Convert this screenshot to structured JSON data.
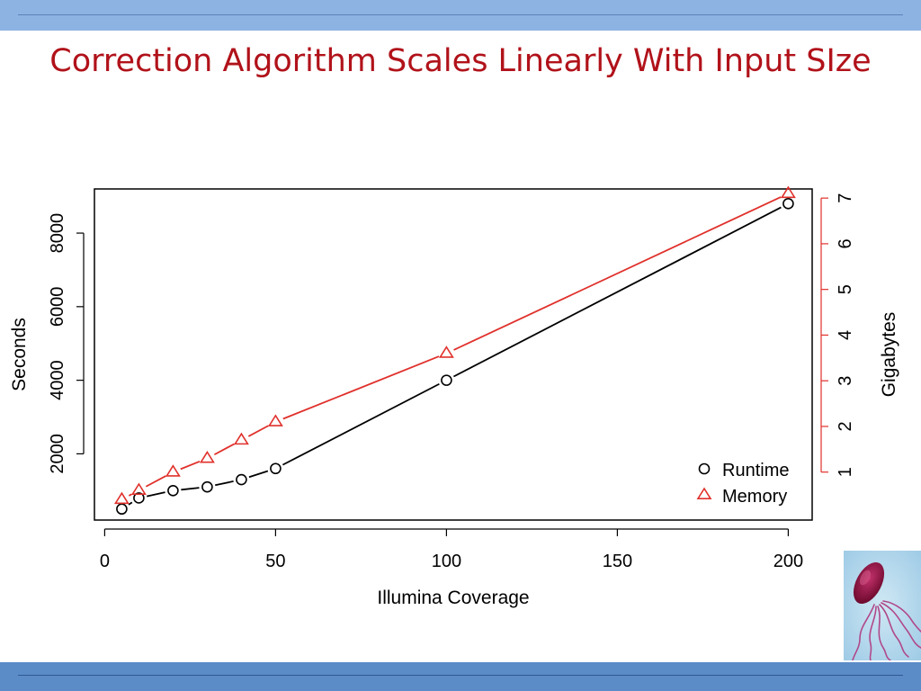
{
  "slide": {
    "title": "Correction Algorithm Scales Linearly With Input SIze",
    "colors": {
      "title": "#b1121a",
      "top_bar": "#8db3e2",
      "bottom_bar": "#5b8cc8"
    },
    "decoration": "bacterium-image"
  },
  "chart_data": {
    "type": "line",
    "title": "",
    "xlabel": "Illumina Coverage",
    "ylabel": "Seconds",
    "y2label": "Gigabytes",
    "xlim": [
      -3,
      207
    ],
    "ylim": [
      200,
      9200
    ],
    "y2lim": [
      -0.05,
      7.2
    ],
    "xticks": [
      0,
      50,
      100,
      150,
      200
    ],
    "yticks": [
      2000,
      4000,
      6000,
      8000
    ],
    "y2ticks": [
      1,
      2,
      3,
      4,
      5,
      6,
      7
    ],
    "grid": false,
    "legend_position": "bottom-right",
    "series": [
      {
        "name": "Runtime",
        "axis": "left",
        "unit": "Seconds",
        "marker": "circle",
        "color": "#000000",
        "x": [
          5,
          10,
          20,
          30,
          40,
          50,
          100,
          200
        ],
        "values": [
          500,
          800,
          1000,
          1100,
          1300,
          1600,
          4000,
          8800
        ]
      },
      {
        "name": "Memory",
        "axis": "right",
        "unit": "Gigabytes",
        "marker": "triangle",
        "color": "#e0302b",
        "x": [
          5,
          10,
          20,
          30,
          40,
          50,
          100,
          200
        ],
        "values": [
          0.4,
          0.6,
          1.0,
          1.3,
          1.7,
          2.1,
          3.6,
          7.1
        ]
      }
    ]
  }
}
